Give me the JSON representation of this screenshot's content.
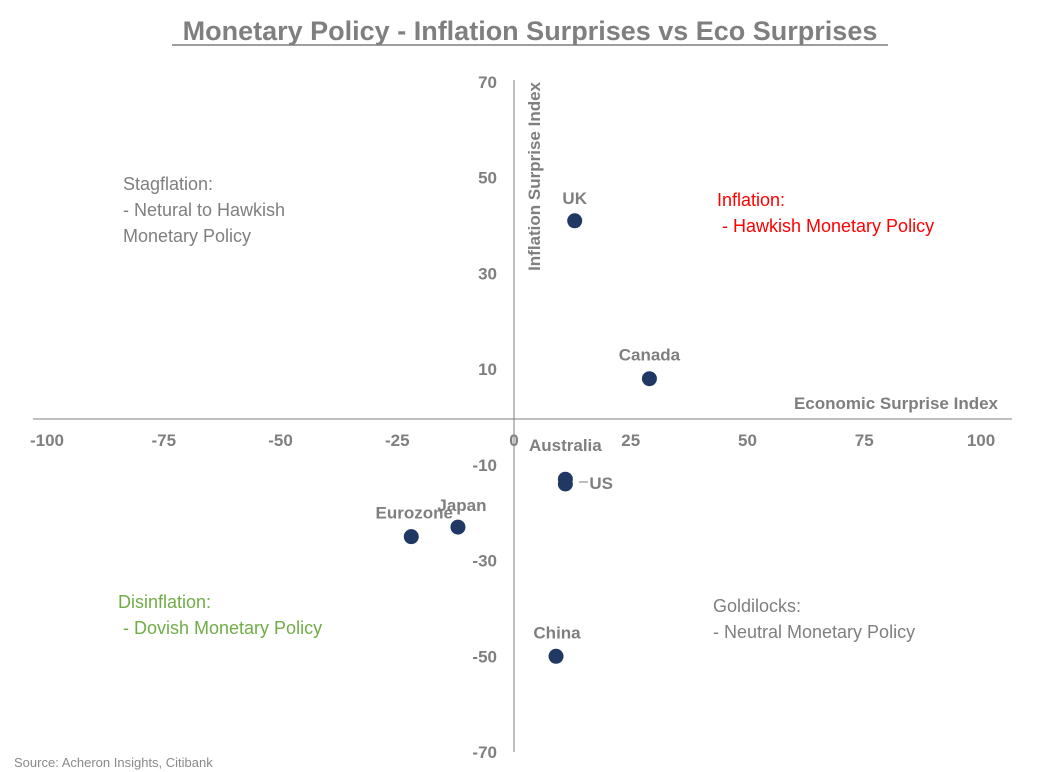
{
  "chart_data": {
    "type": "scatter",
    "title": "Monetary Policy - Inflation Surprises vs Eco Surprises",
    "xlabel": "Economic Surprise Index",
    "ylabel": "Inflation Surprise Index",
    "xlim": [
      -100,
      100
    ],
    "ylim": [
      -70,
      70
    ],
    "x_ticks": [
      -100,
      -75,
      -50,
      -25,
      0,
      25,
      50,
      75,
      100
    ],
    "y_ticks": [
      70,
      50,
      30,
      10,
      -10,
      -30,
      -50,
      -70
    ],
    "marker_color": "#1f3864",
    "points": [
      {
        "name": "UK",
        "x": 13,
        "y": 41
      },
      {
        "name": "Canada",
        "x": 29,
        "y": 8
      },
      {
        "name": "Australia",
        "x": 11,
        "y": -13
      },
      {
        "name": "US",
        "x": 11,
        "y": -14
      },
      {
        "name": "Japan",
        "x": -12,
        "y": -23
      },
      {
        "name": "Eurozone",
        "x": -22,
        "y": -25
      },
      {
        "name": "China",
        "x": 9,
        "y": -50
      }
    ],
    "annotations": {
      "stagflation": {
        "lines": [
          "Stagflation:",
          "- Netural to Hawkish",
          "Monetary Policy"
        ],
        "color": "#7f7f7f"
      },
      "inflation": {
        "lines": [
          "Inflation:",
          " - Hawkish Monetary Policy"
        ],
        "color": "#ff0000"
      },
      "disinflation": {
        "lines": [
          "Disinflation:",
          " - Dovish Monetary Policy"
        ],
        "color": "#70ad47"
      },
      "goldilocks": {
        "lines": [
          "Goldilocks:",
          "- Neutral Monetary Policy"
        ],
        "color": "#7f7f7f"
      }
    }
  },
  "source": "Source: Acheron Insights, Citibank"
}
